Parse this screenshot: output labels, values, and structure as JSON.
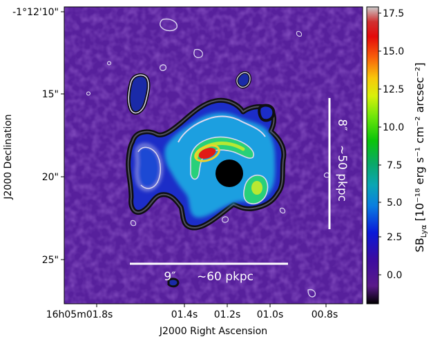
{
  "image": {
    "description_free": true,
    "x_axis": {
      "label": "J2000 Right Ascension",
      "ticks": [
        "16h05m01.8s",
        "01.4s",
        "01.2s",
        "01.0s",
        "00.8s"
      ]
    },
    "y_axis": {
      "label": "J2000 Declination",
      "ticks": [
        "-1°12'10\"",
        "15\"",
        "20\"",
        "25\""
      ]
    },
    "colorbar": {
      "label_prefix": "SB",
      "label_sub": "Lyα",
      "label_units": "[10⁻¹⁸ erg s⁻¹ cm⁻² arcsec⁻²]",
      "ticks": [
        "17.5",
        "15.0",
        "12.5",
        "10.0",
        "7.5",
        "5.0",
        "2.5",
        "0.0"
      ],
      "colormap": "nipy_spectral"
    },
    "scalebar_horizontal": {
      "angle": "9″",
      "distance": "~60 pkpc"
    },
    "scalebar_vertical": {
      "angle": "8″",
      "distance": "~50 pkpc"
    },
    "colors": {
      "background": "#57209c",
      "noise": "#4a1f93",
      "low": "#1c2dc8",
      "mid": "#1f9fe0",
      "high_a": "#28d07a",
      "high_b": "#b8e832",
      "peak": "#e11a16",
      "contour_outer": "#0f0f12",
      "contour_inner": "#ddd8f0",
      "qso_mask": "#000000"
    }
  }
}
